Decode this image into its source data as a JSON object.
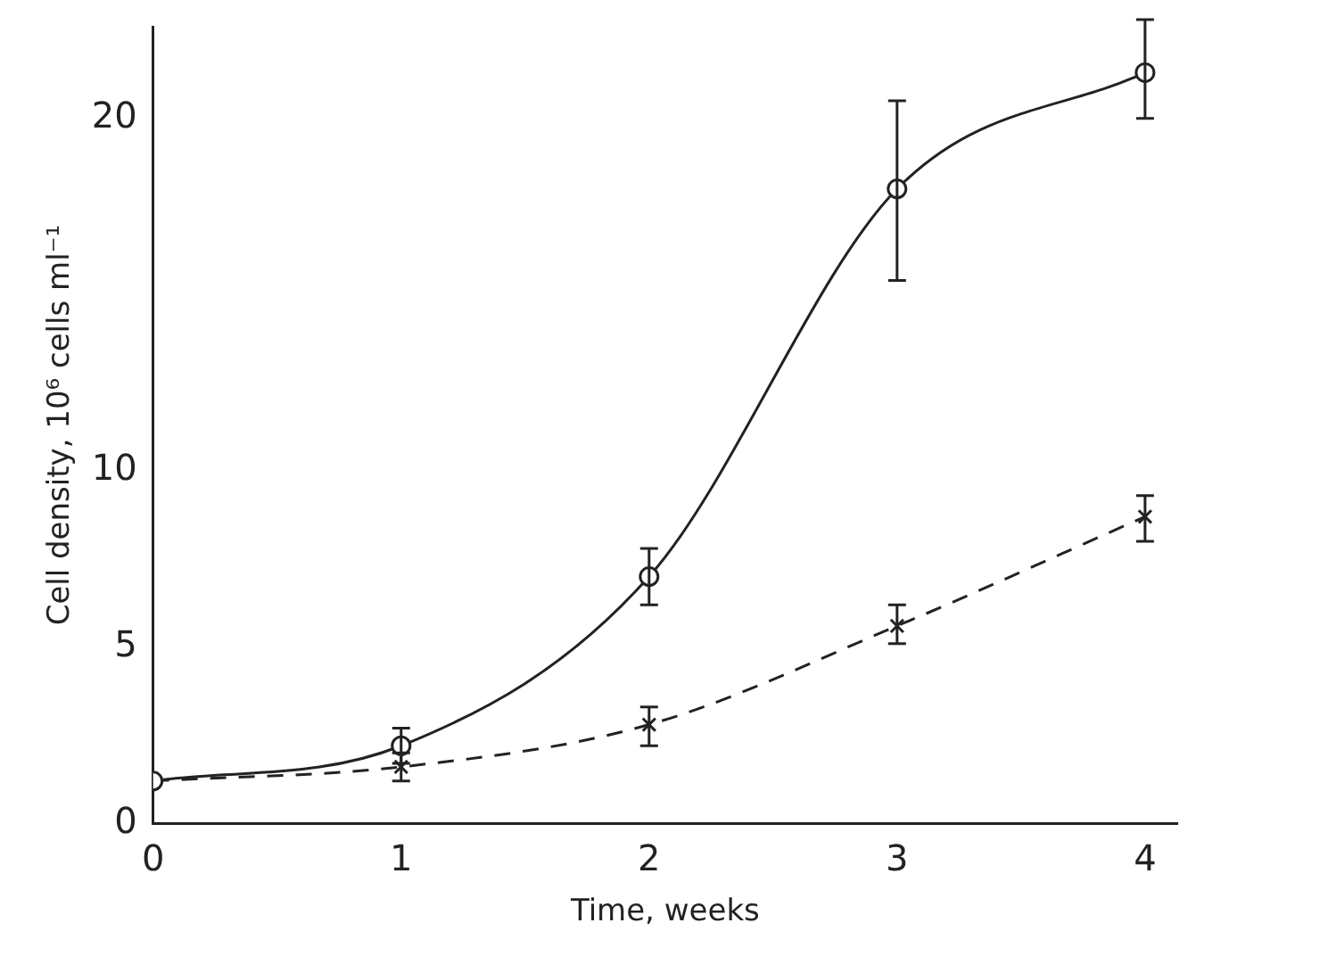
{
  "chart_data": {
    "type": "line",
    "xlabel": "Time, weeks",
    "ylabel": "Cell density, 10⁶ cells ml⁻¹",
    "x": [
      0,
      1,
      2,
      3,
      4
    ],
    "xlim": [
      0,
      4.13
    ],
    "xticks": [
      0,
      1,
      2,
      3,
      4
    ],
    "ylim": [
      0,
      22.6
    ],
    "yticks": [
      0,
      5,
      10,
      20
    ],
    "grid": false,
    "legend": false,
    "series": [
      {
        "color": "#222222",
        "marker": "circle",
        "line_style": "solid",
        "values": [
          1.2,
          2.2,
          7.0,
          18.0,
          21.3
        ],
        "errors": [
          null,
          0.5,
          0.8,
          [
            15.4,
            20.5
          ],
          [
            20.0,
            22.8
          ]
        ]
      },
      {
        "color": "#222222",
        "marker": "cross",
        "line_style": "dashed",
        "values": [
          1.2,
          1.6,
          2.8,
          5.6,
          8.7
        ],
        "errors": [
          null,
          [
            1.2,
            2.0
          ],
          [
            2.2,
            3.3
          ],
          [
            5.1,
            6.2
          ],
          [
            8.0,
            9.3
          ]
        ]
      }
    ]
  }
}
